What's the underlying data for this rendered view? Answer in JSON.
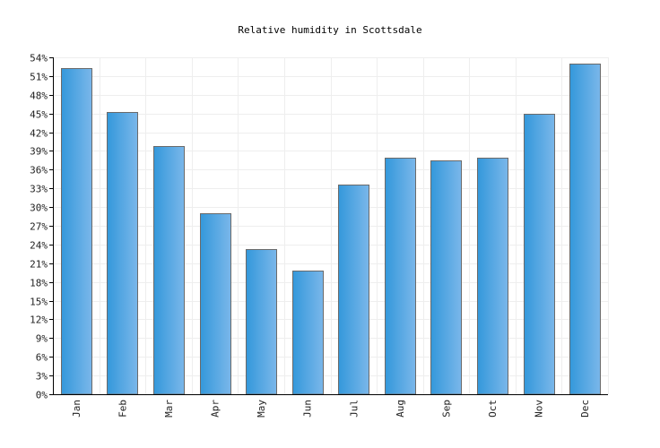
{
  "chart_data": {
    "type": "bar",
    "title": "Relative humidity in Scottsdale",
    "xlabel": "",
    "ylabel": "",
    "categories": [
      "Jan",
      "Feb",
      "Mar",
      "Apr",
      "May",
      "Jun",
      "Jul",
      "Aug",
      "Sep",
      "Oct",
      "Nov",
      "Dec"
    ],
    "values": [
      52.3,
      45.2,
      39.8,
      29.0,
      23.2,
      19.8,
      33.6,
      37.9,
      37.5,
      37.9,
      44.9,
      53.0
    ],
    "ylim": [
      0,
      54
    ],
    "yticks": [
      "0%",
      "3%",
      "6%",
      "9%",
      "12%",
      "15%",
      "18%",
      "21%",
      "24%",
      "27%",
      "30%",
      "33%",
      "36%",
      "39%",
      "42%",
      "45%",
      "48%",
      "51%",
      "54%"
    ],
    "grid": true,
    "legend": "none",
    "bar_color_dark": "#3498db",
    "bar_color_light": "#7ab7ea",
    "bar_stroke": "#6a6a6a",
    "grid_color": "#eeeeee"
  }
}
